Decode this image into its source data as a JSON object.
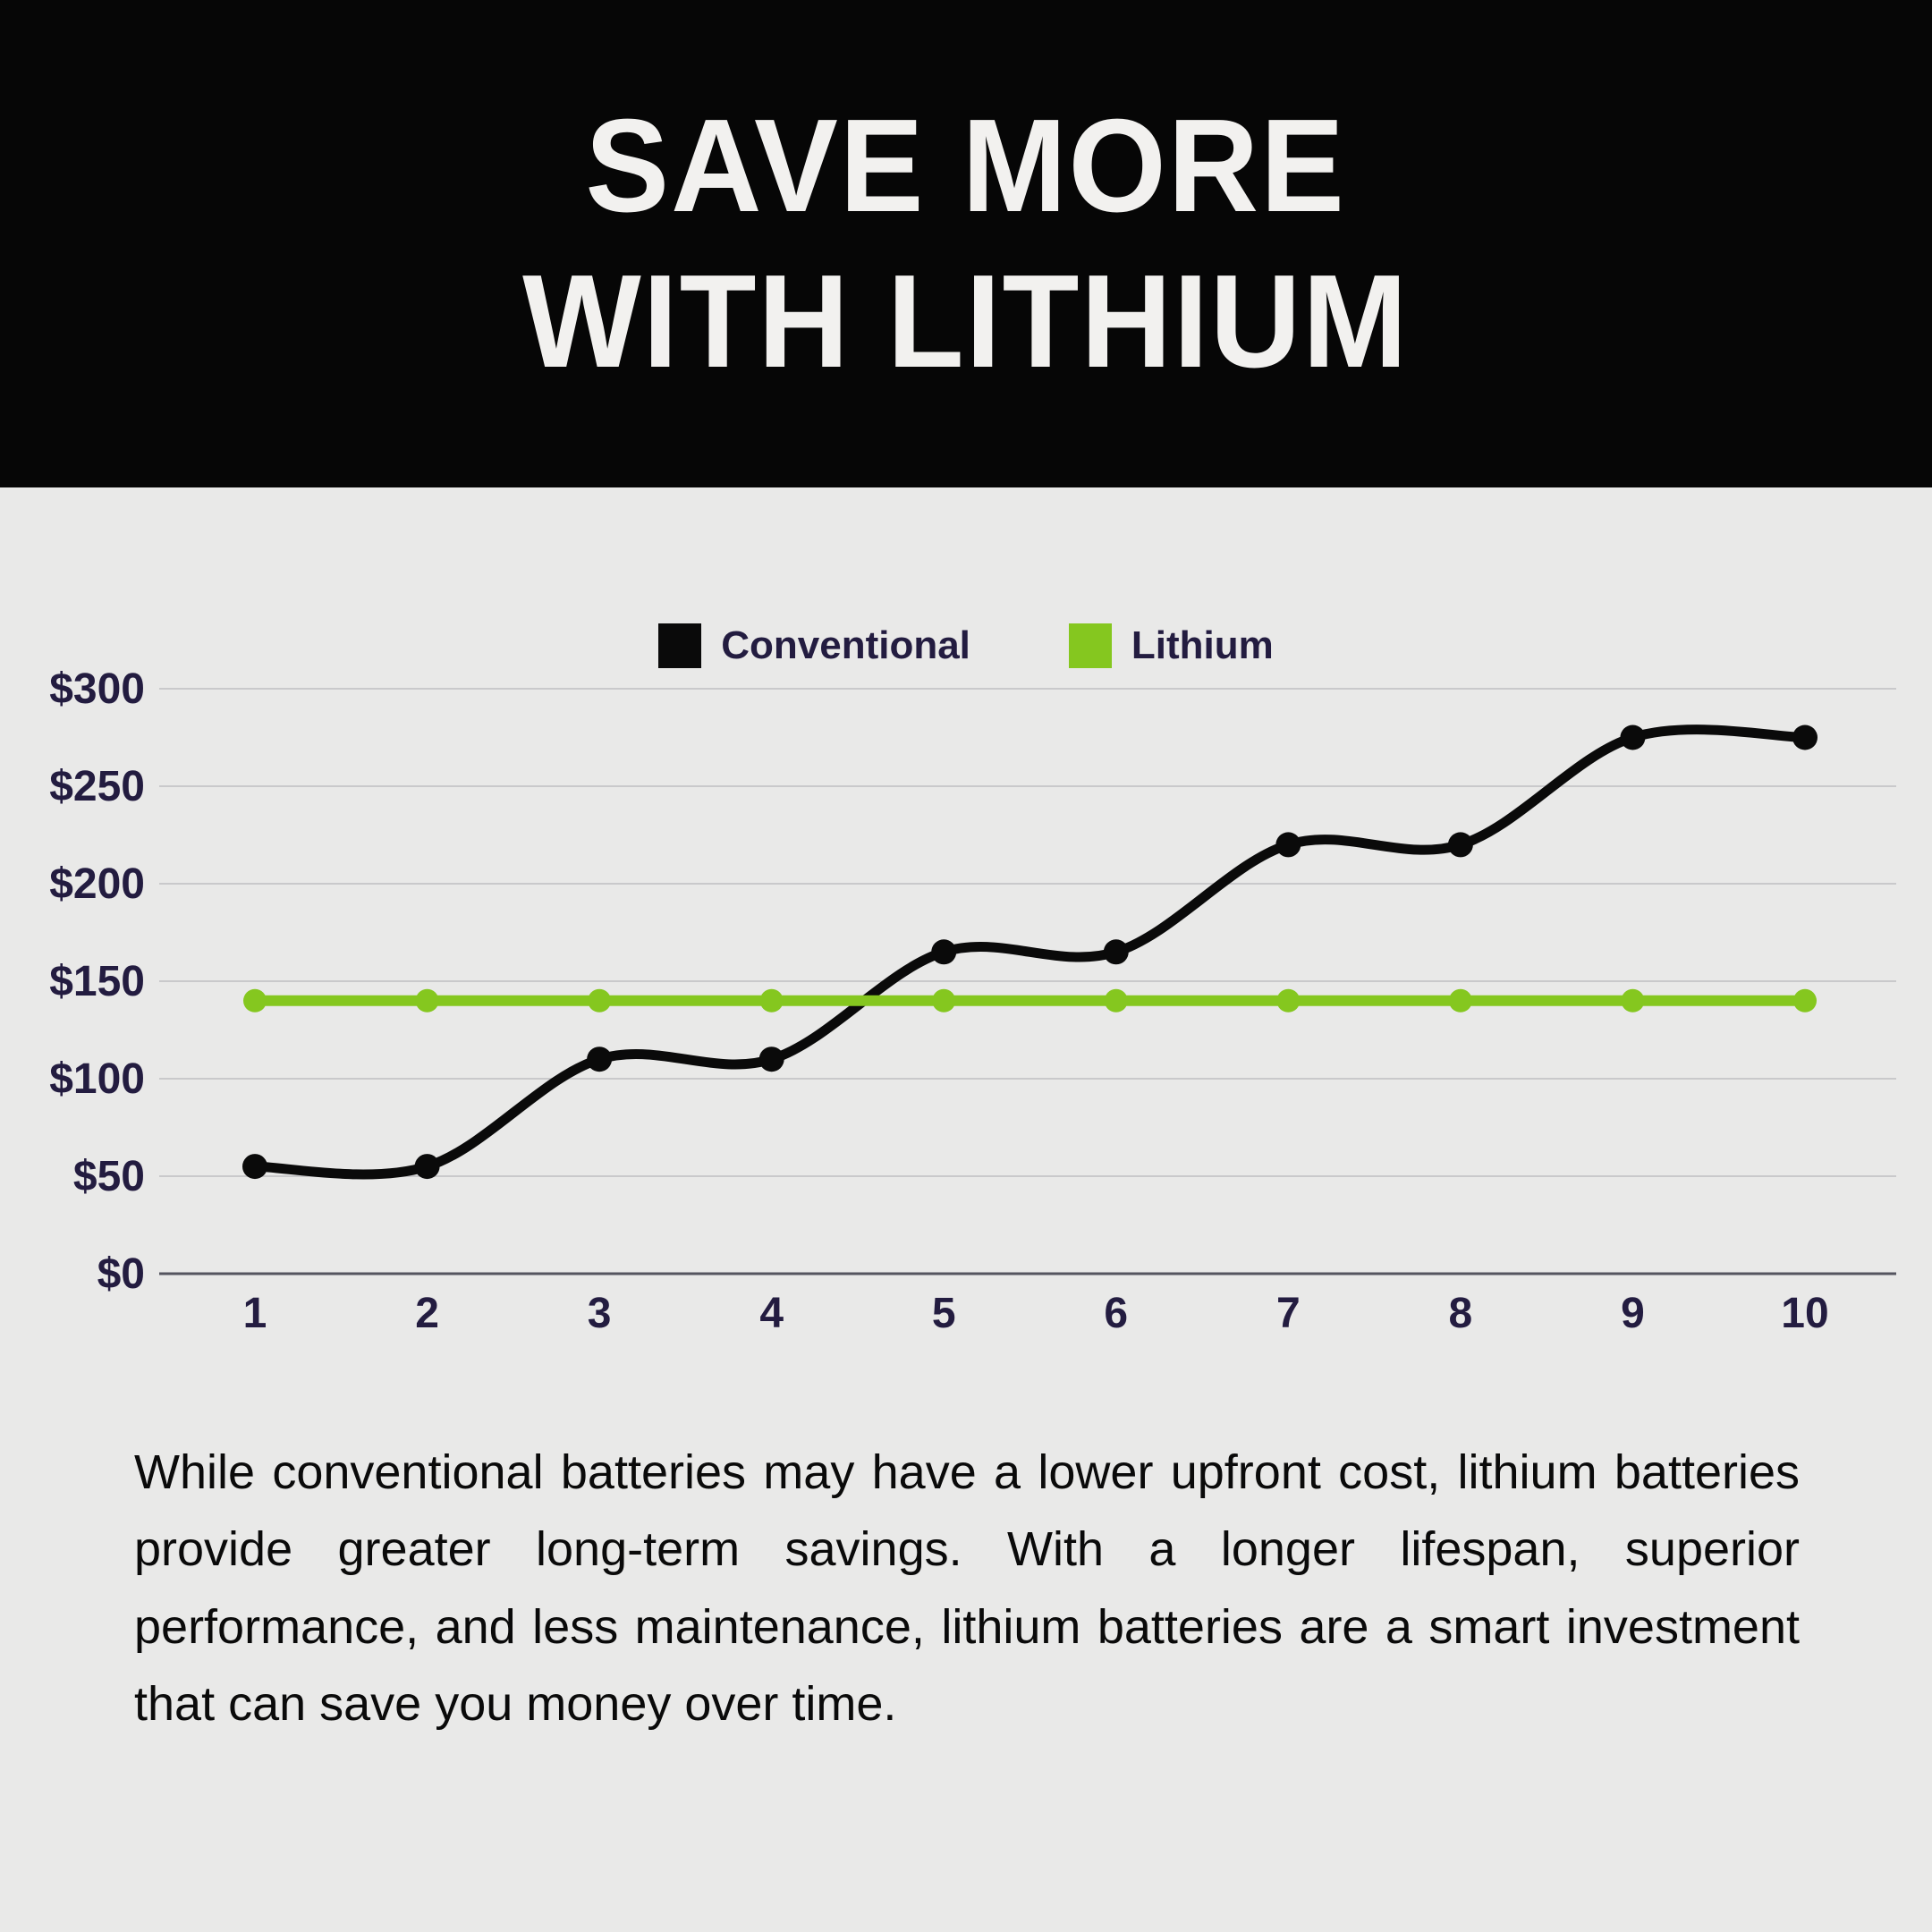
{
  "header": {
    "title_line1": "SAVE MORE",
    "title_line2": "WITH LITHIUM"
  },
  "legend": {
    "items": [
      {
        "label": "Conventional",
        "color": "#0a0a0a"
      },
      {
        "label": "Lithium",
        "color": "#85c71f"
      }
    ]
  },
  "chart_data": {
    "type": "line",
    "x": [
      1,
      2,
      3,
      4,
      5,
      6,
      7,
      8,
      9,
      10
    ],
    "series": [
      {
        "name": "Conventional",
        "color": "#0a0a0a",
        "values": [
          55,
          55,
          110,
          110,
          165,
          165,
          220,
          220,
          275,
          275
        ],
        "smooth": true
      },
      {
        "name": "Lithium",
        "color": "#85c71f",
        "values": [
          140,
          140,
          140,
          140,
          140,
          140,
          140,
          140,
          140,
          140
        ],
        "smooth": false
      }
    ],
    "title": "",
    "xlabel": "",
    "ylabel": "",
    "ylim": [
      0,
      300
    ],
    "ytick_step": 50,
    "ytick_labels": [
      "$0",
      "$50",
      "$100",
      "$150",
      "$200",
      "$250",
      "$300"
    ],
    "grid": true,
    "legend_position": "top-center"
  },
  "description": "While conventional batteries may have a lower upfront cost, lithium batteries provide greater long-term savings. With a longer lifespan, superior performance, and less maintenance, lithium batteries are a smart investment that can save you money over time.",
  "colors": {
    "background": "#e9e9e8",
    "header_bg": "#060606",
    "title_text": "#f2f1ef",
    "axis_text": "#231c40",
    "gridline": "#c9c9cb",
    "baseline": "#55555f",
    "paragraph_text": "#0a0a0a"
  }
}
